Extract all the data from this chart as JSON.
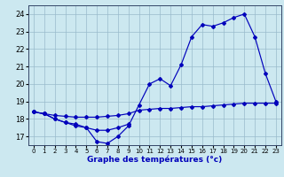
{
  "title": "Graphe des températures (°c)",
  "hours": [
    0,
    1,
    2,
    3,
    4,
    5,
    6,
    7,
    8,
    9,
    10,
    11,
    12,
    13,
    14,
    15,
    16,
    17,
    18,
    19,
    20,
    21,
    22,
    23
  ],
  "curve_main": [
    18.4,
    18.3,
    18.0,
    17.8,
    17.6,
    17.5,
    16.7,
    16.6,
    17.0,
    17.6,
    18.8,
    20.0,
    20.3,
    19.9,
    21.1,
    22.7,
    23.4,
    23.3,
    23.5,
    23.8,
    24.0,
    22.7,
    20.6,
    19.0
  ],
  "curve_mid": [
    18.4,
    18.3,
    18.2,
    18.15,
    18.1,
    18.1,
    18.1,
    18.15,
    18.2,
    18.3,
    18.5,
    18.55,
    18.6,
    18.6,
    18.65,
    18.7,
    18.7,
    18.75,
    18.8,
    18.85,
    18.9,
    18.9,
    18.9,
    18.9
  ],
  "curve_bot": [
    18.4,
    18.3,
    18.0,
    17.8,
    17.7,
    17.5,
    17.35,
    17.35,
    17.5,
    17.7,
    null,
    null,
    null,
    null,
    null,
    null,
    null,
    null,
    null,
    null,
    null,
    null,
    null,
    null
  ],
  "ylim_lo": 16.5,
  "ylim_hi": 24.5,
  "yticks": [
    17,
    18,
    19,
    20,
    21,
    22,
    23,
    24
  ],
  "line_color": "#0000bb",
  "bg_color": "#cce8f0",
  "grid_color": "#99bbcc"
}
